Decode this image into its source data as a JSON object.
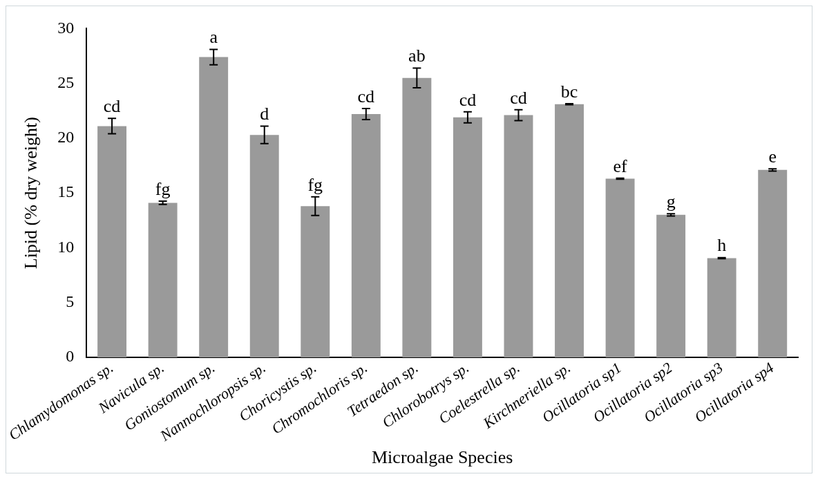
{
  "chart_data": {
    "type": "bar",
    "xlabel": "Microalgae Species",
    "ylabel": "Lipid (% dry weight)",
    "categories": [
      "Chlamydomonas sp.",
      "Navicula sp.",
      "Goniostomum sp.",
      "Nannochloropsis sp.",
      "Choricystis sp.",
      "Chromochloris sp.",
      "Tetraedon sp.",
      "Chlorobotrys sp.",
      "Coelestrella sp.",
      "Kirchneriella sp.",
      "Ocillatoria sp1",
      "Ocillatoria sp2",
      "Ocillatoria sp3",
      "Ocillatoria sp4"
    ],
    "values": [
      21.1,
      14.1,
      27.4,
      20.3,
      13.8,
      22.2,
      25.5,
      21.9,
      22.1,
      23.1,
      16.3,
      13.0,
      9.05,
      17.1
    ],
    "errors": [
      0.7,
      0.15,
      0.7,
      0.8,
      0.85,
      0.5,
      0.9,
      0.5,
      0.5,
      0.05,
      0.05,
      0.1,
      0.05,
      0.1
    ],
    "color": "#9a9a9a",
    "ylim": [
      0,
      30
    ],
    "yticks": [
      0,
      5,
      10,
      15,
      20,
      25,
      30
    ],
    "grid": false,
    "legend": false,
    "annotations": [
      {
        "text": "cd",
        "x": "Chlamydomonas sp.",
        "y": 21.8
      },
      {
        "text": "fg",
        "x": "Navicula sp.",
        "y": 14.25
      },
      {
        "text": "a",
        "x": "Goniostomum sp.",
        "y": 28.1
      },
      {
        "text": "d",
        "x": "Nannochloropsis sp.",
        "y": 21.1
      },
      {
        "text": "fg",
        "x": "Choricystis sp.",
        "y": 14.65
      },
      {
        "text": "cd",
        "x": "Chromochloris sp.",
        "y": 22.7
      },
      {
        "text": "ab",
        "x": "Tetraedon sp.",
        "y": 26.4
      },
      {
        "text": "cd",
        "x": "Chlorobotrys sp.",
        "y": 22.4
      },
      {
        "text": "cd",
        "x": "Coelestrella sp.",
        "y": 22.6
      },
      {
        "text": "bc",
        "x": "Kirchneriella sp.",
        "y": 23.15
      },
      {
        "text": "ef",
        "x": "Ocillatoria sp1",
        "y": 16.35
      },
      {
        "text": "g",
        "x": "Ocillatoria sp2",
        "y": 13.1
      },
      {
        "text": "h",
        "x": "Ocillatoria sp3",
        "y": 9.1
      },
      {
        "text": "e",
        "x": "Ocillatoria sp4",
        "y": 17.2
      }
    ]
  }
}
